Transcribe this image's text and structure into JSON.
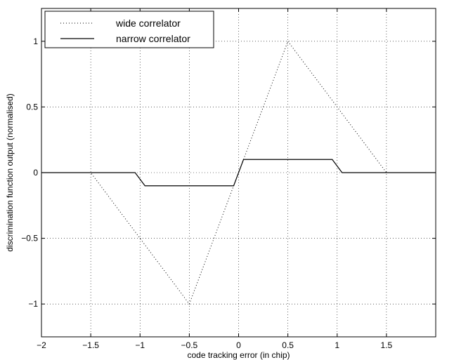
{
  "chart_data": {
    "type": "line",
    "title": "",
    "xlabel": "code tracking error (in chip)",
    "ylabel": "discrimination function output (normalised)",
    "xlim": [
      -2,
      2
    ],
    "ylim": [
      -1.25,
      1.25
    ],
    "xticks": [
      -2,
      -1.5,
      -1,
      -0.5,
      0,
      0.5,
      1,
      1.5
    ],
    "xtick_labels": [
      "−2",
      "−1.5",
      "−1",
      "−0.5",
      "0",
      "0.5",
      "1",
      "1.5"
    ],
    "yticks": [
      -1,
      -0.5,
      0,
      0.5,
      1
    ],
    "ytick_labels": [
      "−1",
      "−0.5",
      "0",
      "0.5",
      "1"
    ],
    "grid": true,
    "legend_position": "top-left",
    "series": [
      {
        "name": "wide correlator",
        "style": "dotted",
        "color": "#000000",
        "x": [
          -2,
          -1.5,
          -0.5,
          0.5,
          1.5,
          2
        ],
        "y": [
          0,
          0,
          -1,
          1,
          0,
          0
        ]
      },
      {
        "name": "narrow correlator",
        "style": "solid",
        "color": "#000000",
        "x": [
          -2,
          -1.05,
          -0.95,
          -0.05,
          0.05,
          0.95,
          1.05,
          2
        ],
        "y": [
          0,
          0,
          -0.1,
          -0.1,
          0.1,
          0.1,
          0,
          0
        ]
      }
    ]
  }
}
